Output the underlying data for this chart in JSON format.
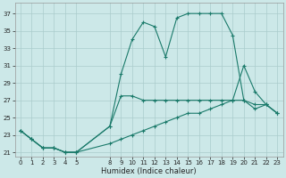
{
  "xlabel": "Humidex (Indice chaleur)",
  "bg_color": "#cce8e8",
  "grid_color": "#aacccc",
  "line_color": "#1a7a6a",
  "ylim": [
    20.5,
    38.2
  ],
  "xlim": [
    -0.5,
    23.5
  ],
  "yticks": [
    21,
    23,
    25,
    27,
    29,
    31,
    33,
    35,
    37
  ],
  "xticks": [
    0,
    1,
    2,
    3,
    4,
    5,
    8,
    9,
    10,
    11,
    12,
    13,
    14,
    15,
    16,
    17,
    18,
    19,
    20,
    21,
    22,
    23
  ],
  "line1_x": [
    0,
    1,
    2,
    3,
    4,
    5,
    8,
    9,
    10,
    11,
    12,
    13,
    14,
    15,
    16,
    17,
    18,
    19,
    20,
    21,
    22,
    23
  ],
  "line1_y": [
    23.5,
    22.5,
    21.5,
    21.5,
    21.0,
    21.0,
    24.0,
    30.0,
    34.0,
    36.0,
    35.5,
    32.0,
    36.5,
    37.0,
    37.0,
    37.0,
    37.0,
    34.5,
    27.0,
    26.5,
    26.5,
    25.5
  ],
  "line2_x": [
    0,
    1,
    2,
    3,
    4,
    5,
    8,
    9,
    10,
    11,
    12,
    13,
    14,
    15,
    16,
    17,
    18,
    19,
    20,
    21,
    22,
    23
  ],
  "line2_y": [
    23.5,
    22.5,
    21.5,
    21.5,
    21.0,
    21.0,
    24.0,
    27.5,
    27.5,
    27.0,
    27.0,
    27.0,
    27.0,
    27.0,
    27.0,
    27.0,
    27.0,
    27.0,
    31.0,
    28.0,
    26.5,
    25.5
  ],
  "line3_x": [
    0,
    1,
    2,
    3,
    4,
    5,
    8,
    9,
    10,
    11,
    12,
    13,
    14,
    15,
    16,
    17,
    18,
    19,
    20,
    21,
    22,
    23
  ],
  "line3_y": [
    23.5,
    22.5,
    21.5,
    21.5,
    21.0,
    21.0,
    22.0,
    22.5,
    23.0,
    23.5,
    24.0,
    24.5,
    25.0,
    25.5,
    25.5,
    26.0,
    26.5,
    27.0,
    27.0,
    26.0,
    26.5,
    25.5
  ],
  "tick_fontsize": 5.0,
  "xlabel_fontsize": 6.0,
  "linewidth": 0.8,
  "markersize": 3.5,
  "markeredgewidth": 0.8
}
